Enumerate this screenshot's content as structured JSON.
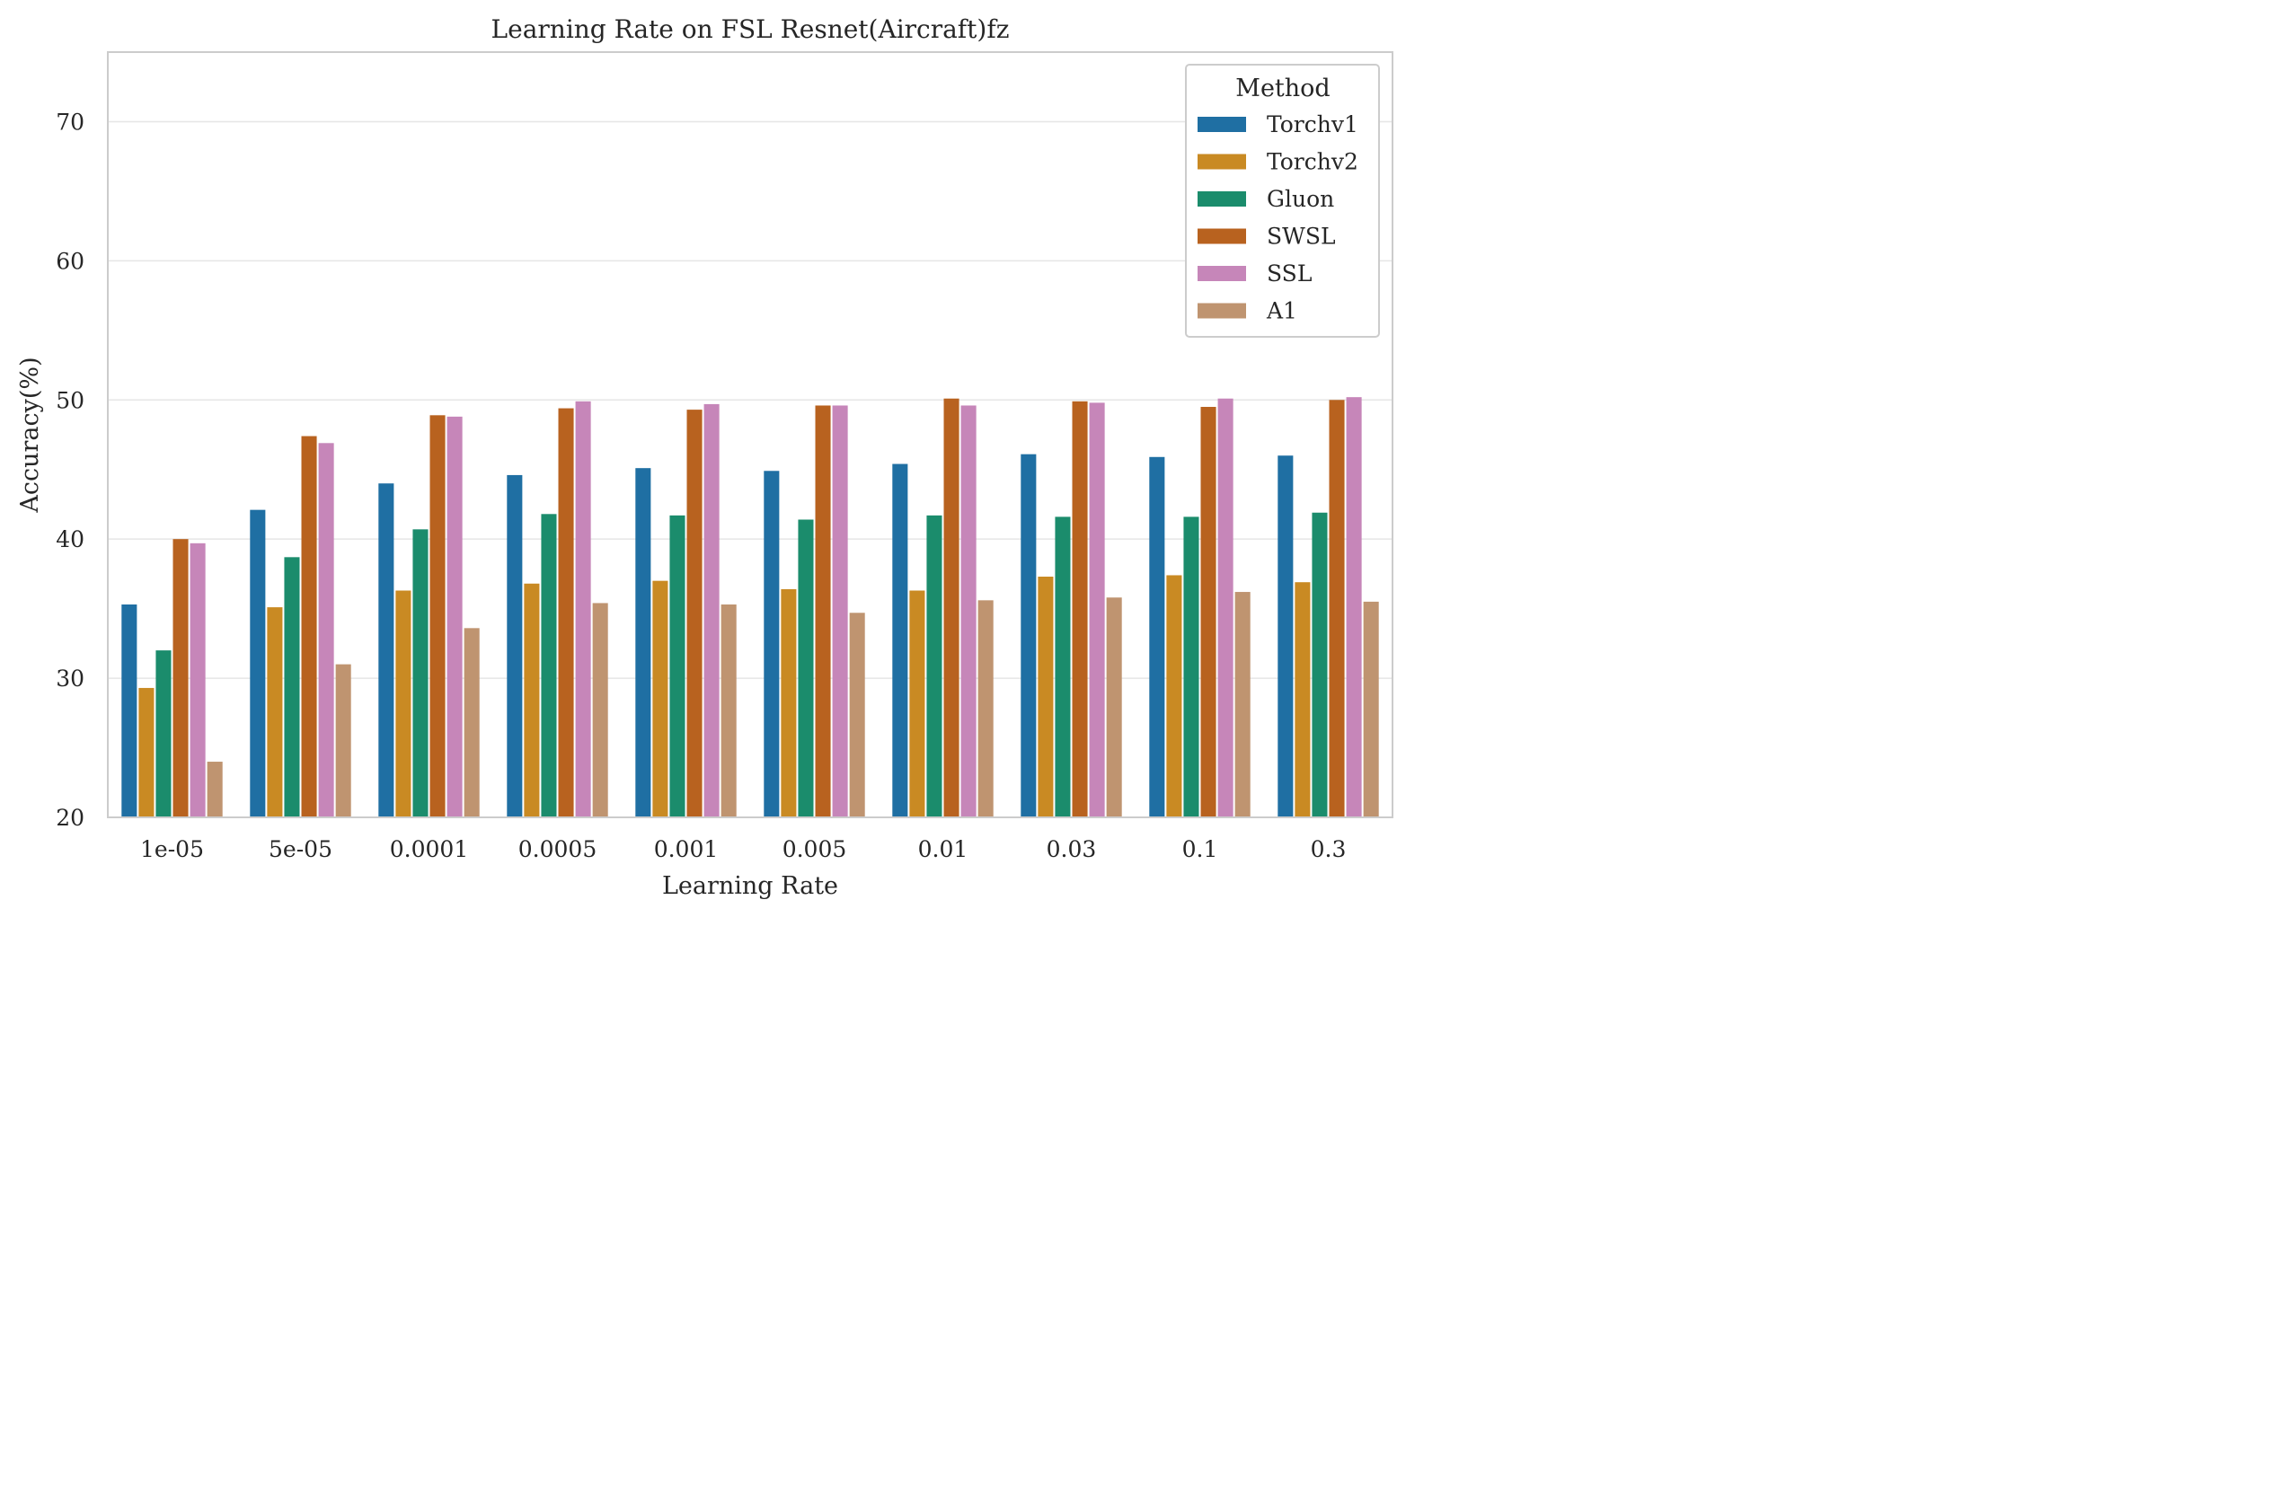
{
  "chart_data": {
    "type": "bar",
    "title": "Learning Rate on FSL Resnet(Aircraft)fz",
    "xlabel": "Learning Rate",
    "ylabel": "Accuracy(%)",
    "ylim": [
      20,
      75
    ],
    "yticks": [
      20,
      30,
      40,
      50,
      60,
      70
    ],
    "grid": true,
    "legend_title": "Method",
    "legend_position": "top-right",
    "categories": [
      "1e-05",
      "5e-05",
      "0.0001",
      "0.0005",
      "0.001",
      "0.005",
      "0.01",
      "0.03",
      "0.1",
      "0.3"
    ],
    "series": [
      {
        "name": "Torchv1",
        "color": "#1f6fa3",
        "values": [
          35.3,
          42.1,
          44.0,
          44.6,
          45.1,
          44.9,
          45.4,
          46.1,
          45.9,
          46.0
        ]
      },
      {
        "name": "Torchv2",
        "color": "#c98a23",
        "values": [
          29.3,
          35.1,
          36.3,
          36.8,
          37.0,
          36.4,
          36.3,
          37.3,
          37.4,
          36.9
        ]
      },
      {
        "name": "Gluon",
        "color": "#1b8c6c",
        "values": [
          32.0,
          38.7,
          40.7,
          41.8,
          41.7,
          41.4,
          41.7,
          41.6,
          41.6,
          41.9
        ]
      },
      {
        "name": "SWSL",
        "color": "#b8621f",
        "values": [
          40.0,
          47.4,
          48.9,
          49.4,
          49.3,
          49.6,
          50.1,
          49.9,
          49.5,
          50.0
        ]
      },
      {
        "name": "SSL",
        "color": "#c686b9",
        "values": [
          39.7,
          46.9,
          48.8,
          49.9,
          49.7,
          49.6,
          49.6,
          49.8,
          50.1,
          50.2
        ]
      },
      {
        "name": "A1",
        "color": "#bf9470",
        "values": [
          24.0,
          31.0,
          33.6,
          35.4,
          35.3,
          34.7,
          35.6,
          35.8,
          36.2,
          35.5
        ]
      }
    ]
  }
}
